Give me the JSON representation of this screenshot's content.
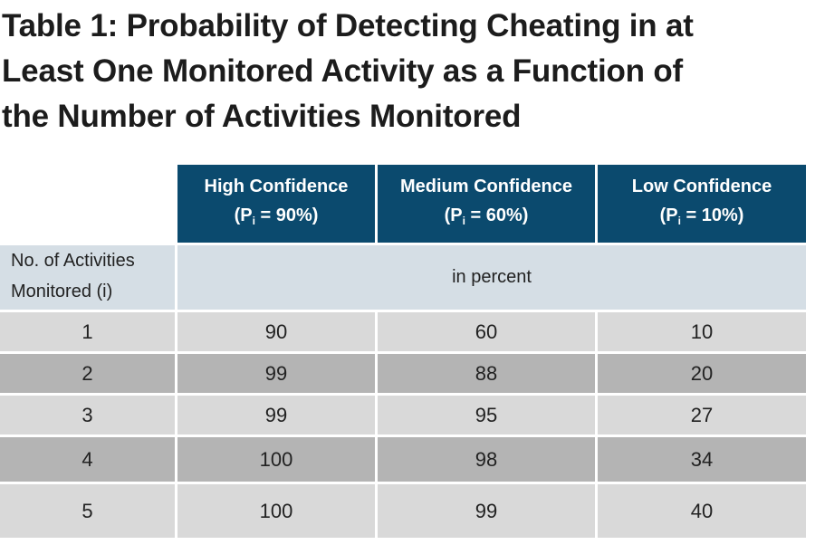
{
  "title": {
    "line1": "Table 1: Probability of Detecting Cheating in at",
    "line2": "Least One Monitored Activity as a Function of",
    "line3": "the Number of Activities Monitored"
  },
  "table": {
    "columns": [
      {
        "name": "High Confidence",
        "p_label": "P",
        "p_sub": "i",
        "p_value": "= 90%"
      },
      {
        "name": "Medium Confidence",
        "p_label": "P",
        "p_sub": "i",
        "p_value": "= 60%"
      },
      {
        "name": "Low Confidence",
        "p_label": "P",
        "p_sub": "i",
        "p_value": "= 10%"
      }
    ],
    "row_header_line1": "No. of Activities",
    "row_header_line2": "Monitored (i)",
    "unit": "in percent",
    "rows": [
      {
        "i": "1",
        "values": [
          "90",
          "60",
          "10"
        ]
      },
      {
        "i": "2",
        "values": [
          "99",
          "88",
          "20"
        ]
      },
      {
        "i": "3",
        "values": [
          "99",
          "95",
          "27"
        ]
      },
      {
        "i": "4",
        "values": [
          "100",
          "98",
          "34"
        ]
      },
      {
        "i": "5",
        "values": [
          "100",
          "99",
          "40"
        ]
      }
    ]
  },
  "colors": {
    "header": "#0b4a6e",
    "unit_row": "#d5dee5",
    "row_light": "#d9d9d9",
    "row_dark": "#b4b4b4"
  }
}
